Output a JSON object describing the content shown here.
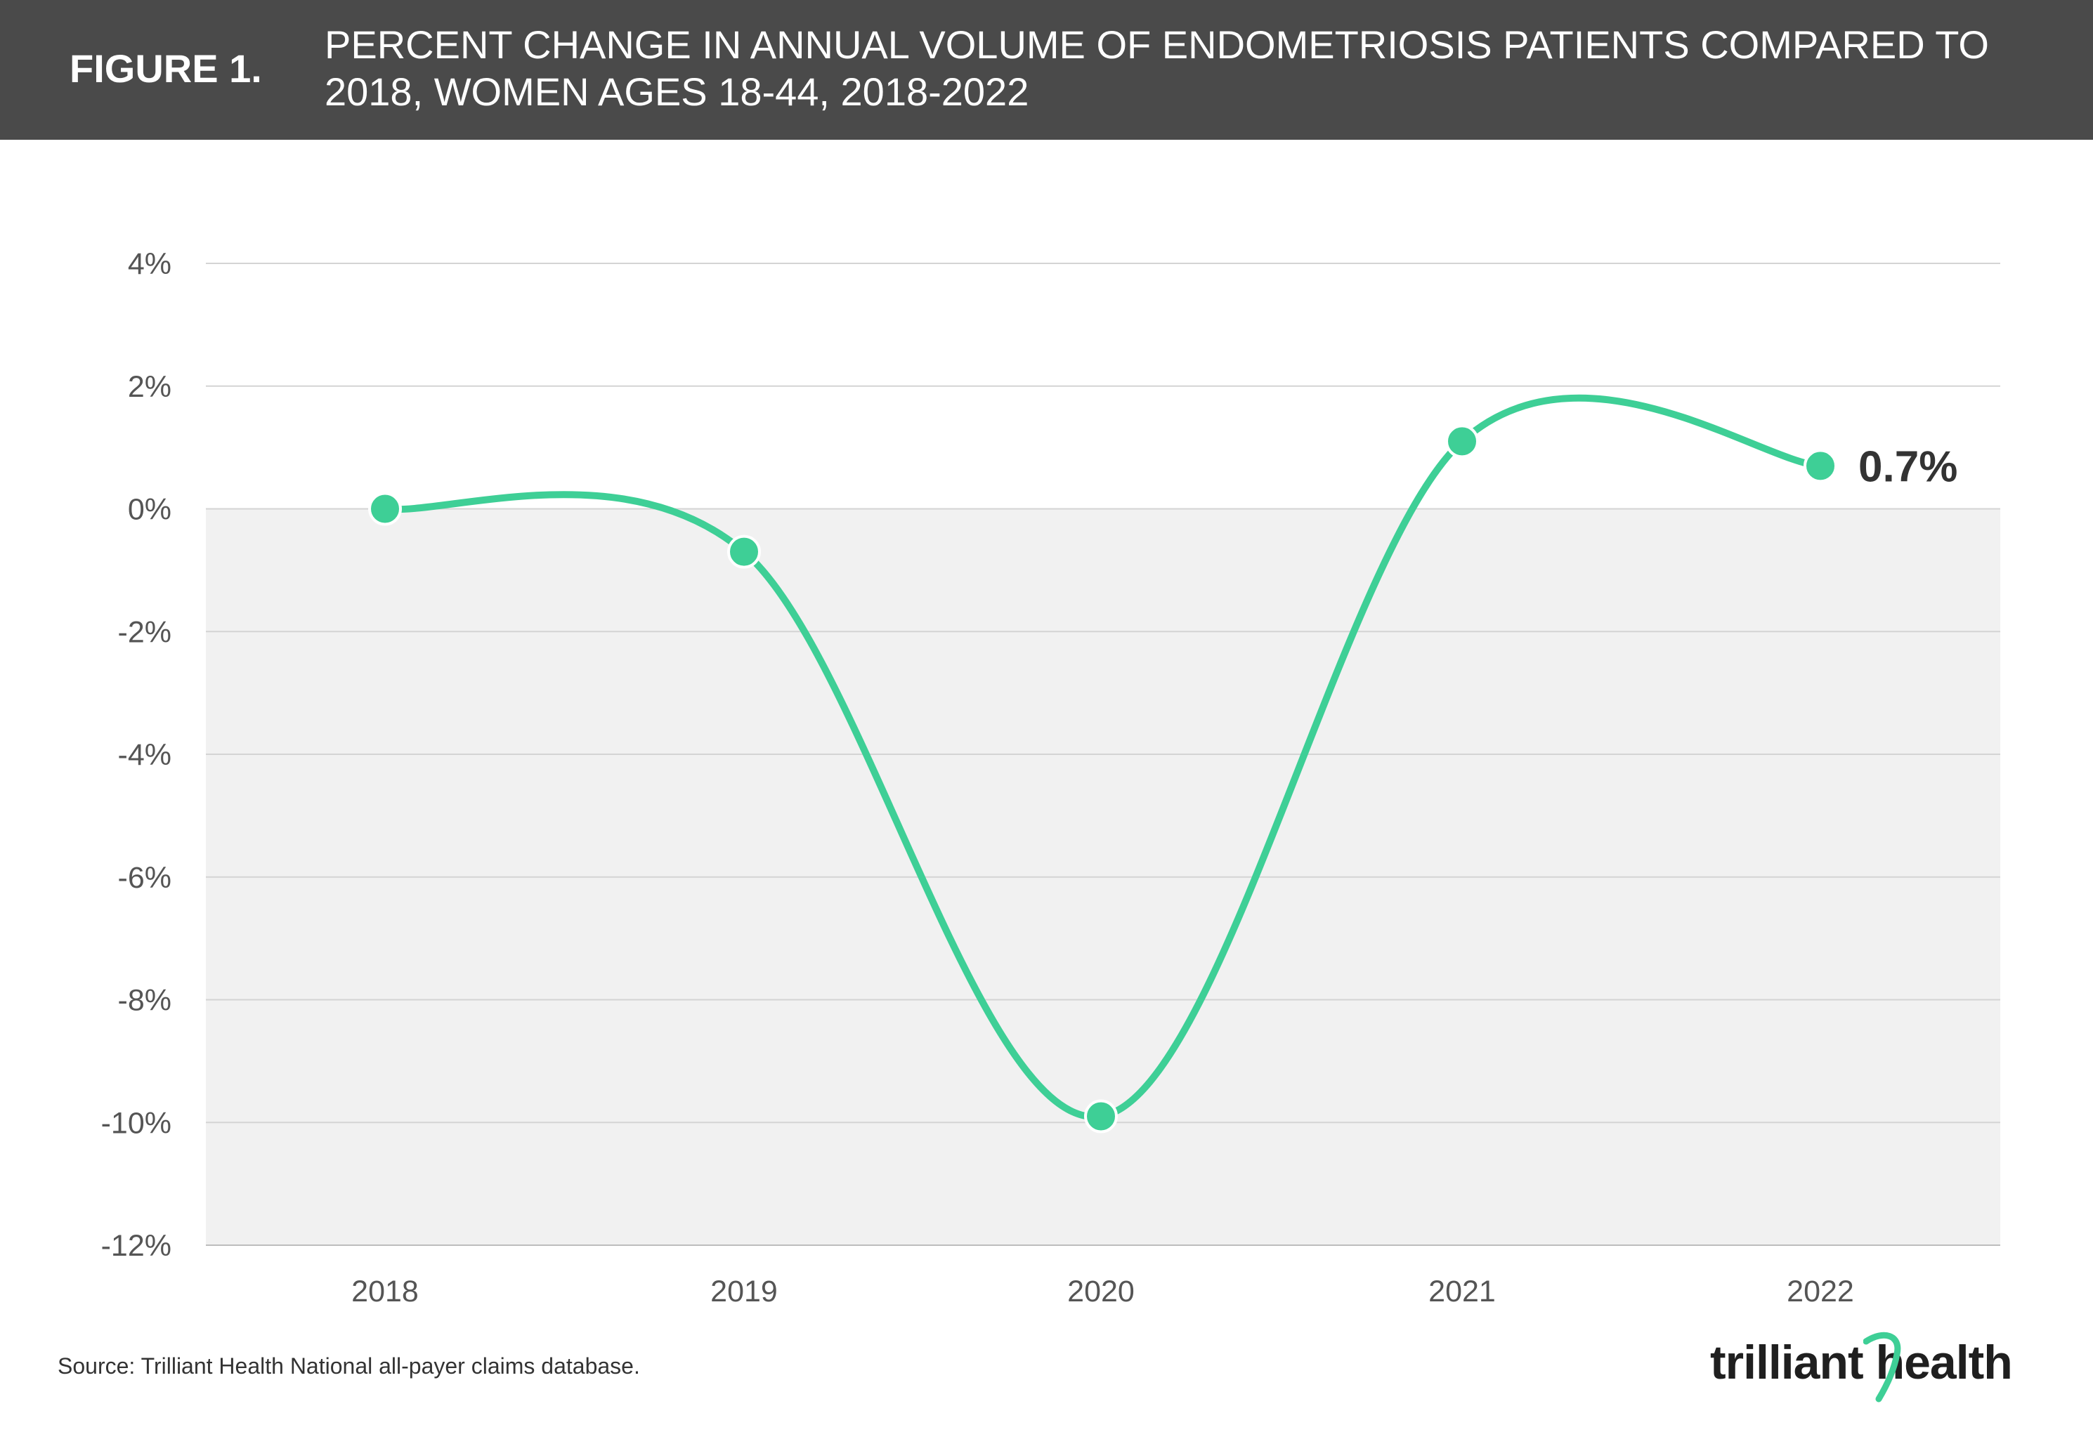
{
  "header": {
    "figure_label": "FIGURE 1.",
    "title": "PERCENT CHANGE IN ANNUAL VOLUME OF ENDOMETRIOSIS PATIENTS COMPARED TO 2018, WOMEN AGES 18-44, 2018-2022"
  },
  "colors": {
    "header_bg": "#4a4a4a",
    "line": "#3ecf96",
    "negative_band": "#f1f1f1",
    "gridline": "#d4d4d4"
  },
  "chart_data": {
    "type": "line",
    "title": "PERCENT CHANGE IN ANNUAL VOLUME OF ENDOMETRIOSIS PATIENTS COMPARED TO 2018, WOMEN AGES 18-44, 2018-2022",
    "xlabel": "",
    "ylabel": "",
    "categories": [
      "2018",
      "2019",
      "2020",
      "2021",
      "2022"
    ],
    "series": [
      {
        "values": [
          0.0,
          -0.7,
          -9.9,
          1.1,
          0.7
        ]
      }
    ],
    "ylim": [
      -12,
      4
    ],
    "yticks": [
      4,
      2,
      0,
      -2,
      -4,
      -6,
      -8,
      -10,
      -12
    ],
    "ytick_labels": [
      "4%",
      "2%",
      "0%",
      "-2%",
      "-4%",
      "-6%",
      "-8%",
      "-10%",
      "-12%"
    ],
    "grid": true,
    "negative_region_shaded": true,
    "annotations": [
      {
        "category": "2022",
        "text": "0.7%"
      }
    ]
  },
  "footer": {
    "source": "Source: Trilliant Health National all-payer claims database.",
    "logo_text": "trilliant health"
  }
}
